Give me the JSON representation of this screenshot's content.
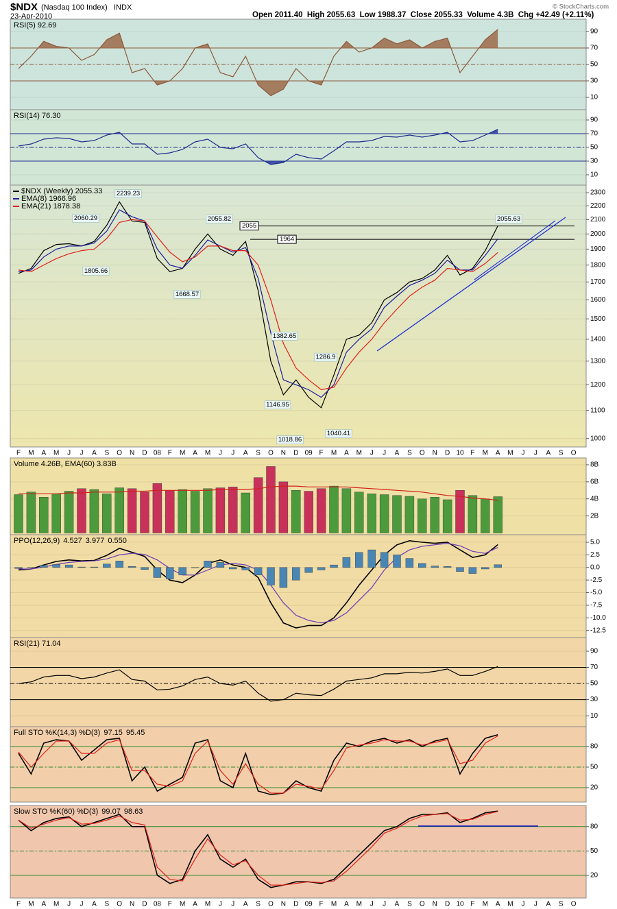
{
  "header": {
    "symbol": "$NDX",
    "name": "(Nasdaq 100 Index)",
    "exchange": "INDX",
    "date": "23-Apr-2010",
    "quote": "Open 2011.40  High 2055.63  Low 1988.37  Close 2055.33  Volume 4.3B  Chg +42.49 (+2.11%)",
    "credit": "© StockCharts.com"
  },
  "chart_data": [
    {
      "type": "line",
      "title": "RSI(5) 92.69",
      "ylim": [
        -5,
        105
      ],
      "yticks": [
        10,
        30,
        50,
        70,
        90
      ],
      "levels": [
        70,
        50,
        30
      ],
      "level_color": "#8b5a3c",
      "series": [
        {
          "color": "#8b5a3c",
          "fill_color": "#9c6a4a",
          "values": [
            45,
            60,
            78,
            72,
            70,
            55,
            62,
            80,
            88,
            40,
            45,
            25,
            30,
            45,
            70,
            75,
            40,
            35,
            60,
            25,
            12,
            20,
            45,
            30,
            25,
            60,
            78,
            65,
            70,
            82,
            75,
            80,
            70,
            78,
            82,
            40,
            60,
            80,
            92.69,
            null,
            null,
            null,
            null,
            null,
            null
          ]
        }
      ]
    },
    {
      "type": "line",
      "title": "RSI(14) 76.30",
      "ylim": [
        -5,
        105
      ],
      "yticks": [
        10,
        30,
        50,
        70,
        90
      ],
      "levels": [
        70,
        50,
        30
      ],
      "level_color": "#1a2a8e",
      "series": [
        {
          "color": "#1a2a8e",
          "fill_color": "#2a3aa0",
          "values": [
            52,
            55,
            62,
            64,
            63,
            58,
            60,
            68,
            72,
            55,
            55,
            40,
            42,
            47,
            58,
            62,
            50,
            48,
            55,
            35,
            25,
            28,
            40,
            35,
            33,
            45,
            58,
            58,
            60,
            66,
            65,
            68,
            65,
            68,
            72,
            58,
            60,
            68,
            76.3,
            null,
            null,
            null,
            null,
            null,
            null
          ]
        }
      ]
    },
    {
      "type": "line",
      "log": true,
      "legend": "stack",
      "ylim": [
        972,
        2360
      ],
      "yticks": [
        1000,
        1100,
        1200,
        1300,
        1400,
        1500,
        1600,
        1700,
        1800,
        1900,
        2000,
        2100,
        2200,
        2300
      ],
      "categories": [
        "F",
        "M",
        "A",
        "M",
        "J",
        "J",
        "A",
        "S",
        "O",
        "N",
        "D",
        "08",
        "F",
        "M",
        "A",
        "M",
        "J",
        "J",
        "A",
        "S",
        "O",
        "N",
        "D",
        "09",
        "F",
        "M",
        "A",
        "M",
        "J",
        "J",
        "A",
        "S",
        "O",
        "N",
        "D",
        "10",
        "F",
        "M",
        "A",
        "M",
        "J",
        "J",
        "A",
        "S",
        "O"
      ],
      "levels": [
        2055,
        1964
      ],
      "annotations": [
        2239.23,
        2060.29,
        2055.82,
        1805.66,
        1668.57,
        1382.65,
        1286.9,
        1146.95,
        1018.86,
        1040.41,
        2055.63
      ],
      "series": [
        {
          "name": "$NDX (Weekly) 2055.33",
          "color": "#000000",
          "values": [
            1750,
            1780,
            1890,
            1930,
            1935,
            1920,
            1950,
            2060,
            2230,
            2090,
            2080,
            1840,
            1760,
            1780,
            1900,
            2000,
            1900,
            1860,
            1950,
            1650,
            1300,
            1160,
            1220,
            1150,
            1110,
            1240,
            1400,
            1420,
            1480,
            1600,
            1640,
            1700,
            1720,
            1770,
            1860,
            1740,
            1780,
            1890,
            2055.33,
            null,
            null,
            null,
            null,
            null,
            null
          ]
        },
        {
          "name": "EMA(8) 1966.96",
          "color": "#1a1a9e",
          "values": [
            1760,
            1770,
            1850,
            1900,
            1920,
            1920,
            1940,
            2020,
            2170,
            2120,
            2090,
            1900,
            1800,
            1780,
            1860,
            1960,
            1920,
            1880,
            1910,
            1720,
            1430,
            1220,
            1200,
            1180,
            1150,
            1200,
            1340,
            1400,
            1450,
            1560,
            1620,
            1680,
            1710,
            1750,
            1830,
            1770,
            1770,
            1860,
            1966.96,
            null,
            null,
            null,
            null,
            null,
            null
          ]
        },
        {
          "name": "EMA(21) 1878.38",
          "color": "#e0201a",
          "values": [
            1770,
            1760,
            1800,
            1840,
            1870,
            1890,
            1900,
            1970,
            2080,
            2100,
            2090,
            1980,
            1880,
            1820,
            1850,
            1920,
            1920,
            1890,
            1890,
            1800,
            1600,
            1380,
            1270,
            1220,
            1180,
            1190,
            1270,
            1340,
            1400,
            1480,
            1550,
            1620,
            1670,
            1710,
            1780,
            1770,
            1760,
            1810,
            1878.38,
            null,
            null,
            null,
            null,
            null,
            null
          ]
        }
      ]
    },
    {
      "type": "bar",
      "title": "Volume 4.26B, EMA(60) 3.83B",
      "ylim": [
        -0.2,
        8.8
      ],
      "yticks": [
        {
          "value": 2,
          "label": "2B"
        },
        {
          "value": 4,
          "label": "4B"
        },
        {
          "value": 6,
          "label": "6B"
        },
        {
          "value": 8,
          "label": "8B"
        }
      ],
      "series": [
        {
          "kind": "bar",
          "up_color": "#4c9a3c",
          "down_color": "#c8325a",
          "values": [
            4.5,
            4.8,
            4.2,
            4.6,
            4.9,
            5.2,
            5.1,
            4.6,
            5.3,
            5.2,
            4.8,
            5.8,
            5.0,
            5.1,
            4.9,
            5.2,
            5.3,
            5.4,
            4.7,
            6.5,
            7.8,
            6.0,
            5.0,
            4.9,
            5.2,
            5.5,
            5.2,
            4.8,
            4.6,
            4.5,
            4.4,
            4.3,
            4.0,
            4.2,
            3.9,
            5.0,
            4.4,
            4.0,
            4.26,
            null,
            null,
            null,
            null,
            null,
            null
          ]
        },
        {
          "kind": "line",
          "color": "#d0201a",
          "values": [
            4.6,
            4.6,
            4.6,
            4.6,
            4.7,
            4.7,
            4.8,
            4.8,
            4.8,
            4.9,
            4.9,
            5.0,
            5.0,
            5.0,
            5.0,
            5.0,
            5.1,
            5.1,
            5.1,
            5.2,
            5.4,
            5.5,
            5.5,
            5.4,
            5.4,
            5.4,
            5.4,
            5.3,
            5.2,
            5.1,
            5.0,
            4.9,
            4.8,
            4.6,
            4.4,
            4.3,
            4.1,
            4.0,
            3.83,
            null,
            null,
            null,
            null,
            null,
            null
          ]
        }
      ]
    },
    {
      "type": "line",
      "title": "PPO(12,26,9)",
      "ylim": [
        -13.9,
        6.5
      ],
      "yticks": [
        {
          "value": 5,
          "label": "5.0"
        },
        2.5,
        {
          "value": 0,
          "label": "0.0"
        },
        -2.5,
        {
          "value": -5,
          "label": "-5.0"
        },
        -7.5,
        {
          "value": -10,
          "label": "-10.0"
        },
        -12.5
      ],
      "series": [
        {
          "name": "4.527",
          "kind": "line",
          "color": "#000000",
          "values": [
            -0.5,
            -0.3,
            0.5,
            1.2,
            1.5,
            1.3,
            1.4,
            2.4,
            3.8,
            3.0,
            2.2,
            -0.5,
            -2.5,
            -3.0,
            -1.5,
            0.8,
            1.5,
            0.5,
            0.0,
            -2.0,
            -7.0,
            -11.0,
            -12.0,
            -11.5,
            -11.5,
            -10.0,
            -7.0,
            -3.5,
            -0.5,
            2.5,
            4.5,
            5.3,
            5.0,
            4.8,
            5.0,
            3.5,
            2.0,
            2.5,
            4.527,
            null,
            null,
            null,
            null,
            null,
            null
          ]
        },
        {
          "name": "3.977",
          "kind": "line",
          "color": "#6a3ab8",
          "values": [
            -0.3,
            -0.3,
            0.1,
            0.6,
            1.0,
            1.2,
            1.3,
            1.7,
            2.5,
            2.8,
            2.6,
            1.5,
            -0.2,
            -1.5,
            -1.5,
            -0.5,
            0.5,
            0.8,
            0.5,
            -0.5,
            -3.5,
            -7.0,
            -9.5,
            -10.5,
            -11.0,
            -10.5,
            -9.0,
            -6.5,
            -4.0,
            -0.5,
            2.0,
            3.5,
            4.2,
            4.5,
            4.8,
            4.3,
            3.2,
            2.8,
            3.977,
            null,
            null,
            null,
            null,
            null,
            null
          ]
        },
        {
          "name": "0.550",
          "kind": "bar",
          "color": "#4a86b4",
          "values": [
            -0.2,
            0,
            0.4,
            0.6,
            0.5,
            0.1,
            0.1,
            0.7,
            1.3,
            0.2,
            -0.4,
            -2.0,
            -2.3,
            -1.5,
            0,
            1.3,
            1.0,
            -0.3,
            -0.5,
            -1.5,
            -3.5,
            -4.0,
            -2.5,
            -1.0,
            -0.5,
            0.5,
            2.0,
            3.0,
            3.5,
            3.0,
            2.5,
            1.8,
            0.8,
            0.3,
            0.2,
            -0.8,
            -1.2,
            -0.3,
            0.55,
            null,
            null,
            null,
            null,
            null,
            null
          ]
        }
      ]
    },
    {
      "type": "line",
      "title": "RSI(21) 71.04",
      "ylim": [
        -3.5,
        107
      ],
      "yticks": [
        10,
        30,
        50,
        70,
        90
      ],
      "levels": [
        70,
        50,
        30
      ],
      "level_color": "#000000",
      "series": [
        {
          "color": "#000000",
          "values": [
            50,
            52,
            58,
            60,
            60,
            56,
            58,
            63,
            67,
            55,
            53,
            42,
            43,
            47,
            55,
            58,
            50,
            48,
            53,
            38,
            28,
            30,
            38,
            36,
            35,
            43,
            53,
            55,
            57,
            62,
            62,
            64,
            63,
            65,
            68,
            60,
            60,
            65,
            71.04,
            null,
            null,
            null,
            null,
            null,
            null
          ]
        }
      ]
    },
    {
      "type": "line",
      "title": "Full STO %K(14,3) %D(3)",
      "ylim": [
        -1,
        109
      ],
      "yticks": [
        20,
        50,
        80
      ],
      "levels": [
        80,
        50,
        20
      ],
      "level_color": "#2a8a2a",
      "series": [
        {
          "name": "97.15",
          "color": "#000000",
          "values": [
            70,
            40,
            85,
            90,
            88,
            60,
            75,
            90,
            92,
            30,
            50,
            15,
            25,
            35,
            85,
            90,
            30,
            20,
            70,
            15,
            10,
            12,
            30,
            20,
            15,
            60,
            85,
            80,
            88,
            92,
            85,
            90,
            80,
            88,
            92,
            40,
            70,
            92,
            97.15,
            null,
            null,
            null,
            null,
            null,
            null
          ]
        },
        {
          "name": "95.45",
          "color": "#e0201a",
          "values": [
            72,
            50,
            70,
            88,
            88,
            70,
            70,
            85,
            90,
            45,
            45,
            25,
            22,
            30,
            70,
            88,
            45,
            25,
            55,
            25,
            12,
            12,
            25,
            22,
            18,
            45,
            78,
            82,
            85,
            90,
            88,
            88,
            82,
            86,
            90,
            55,
            60,
            85,
            95.45,
            null,
            null,
            null,
            null,
            null,
            null
          ]
        }
      ]
    },
    {
      "type": "line",
      "title": "Slow STO %K(60) %D(3)",
      "ylim": [
        -8,
        106
      ],
      "yticks": [
        20,
        50,
        80
      ],
      "levels": [
        80,
        50,
        20
      ],
      "level_color": "#2a8a2a",
      "categories": [
        "F",
        "M",
        "A",
        "M",
        "J",
        "J",
        "A",
        "S",
        "O",
        "N",
        "D",
        "08",
        "F",
        "M",
        "A",
        "M",
        "J",
        "J",
        "A",
        "S",
        "O",
        "N",
        "D",
        "09",
        "F",
        "M",
        "A",
        "M",
        "J",
        "J",
        "A",
        "S",
        "O",
        "N",
        "D",
        "10",
        "F",
        "M",
        "A",
        "M",
        "J",
        "J",
        "A",
        "S",
        "O"
      ],
      "series": [
        {
          "name": "99.07",
          "color": "#000000",
          "values": [
            88,
            75,
            85,
            90,
            92,
            80,
            85,
            90,
            95,
            80,
            80,
            20,
            10,
            15,
            50,
            70,
            40,
            30,
            40,
            15,
            5,
            8,
            12,
            12,
            10,
            15,
            30,
            45,
            60,
            75,
            80,
            90,
            95,
            95,
            97,
            85,
            90,
            97,
            99.07,
            null,
            null,
            null,
            null,
            null,
            null
          ]
        },
        {
          "name": "98.63",
          "color": "#e0201a",
          "values": [
            88,
            78,
            83,
            88,
            91,
            83,
            84,
            88,
            93,
            85,
            82,
            30,
            15,
            13,
            40,
            65,
            45,
            33,
            38,
            20,
            8,
            8,
            10,
            12,
            11,
            13,
            25,
            40,
            55,
            72,
            78,
            87,
            93,
            95,
            96,
            88,
            89,
            95,
            98.63,
            null,
            null,
            null,
            null,
            null,
            null
          ]
        }
      ]
    }
  ]
}
